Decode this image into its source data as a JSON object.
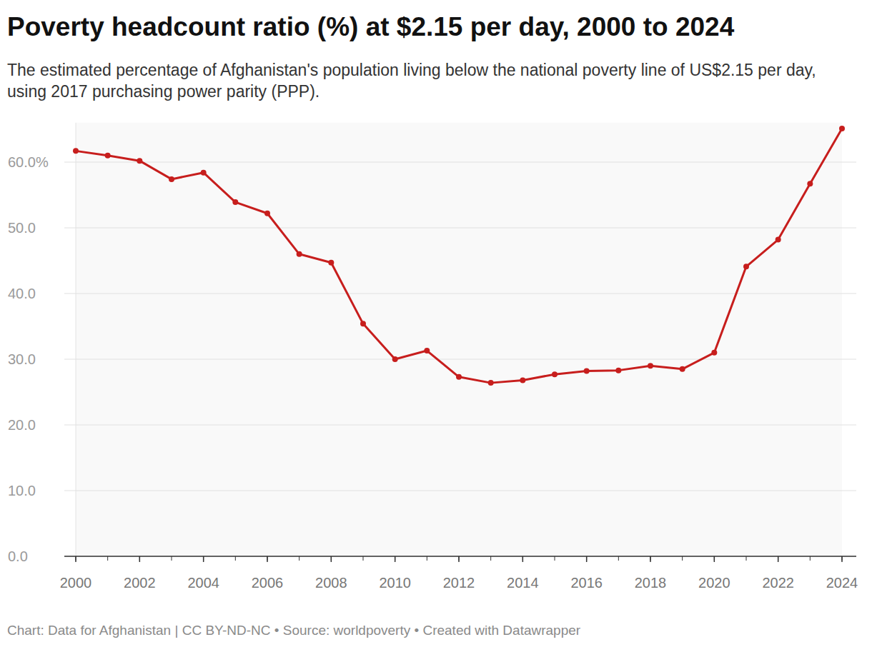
{
  "chart_data": {
    "type": "line",
    "title": "Poverty headcount ratio (%) at $2.15 per day, 2000 to 2024",
    "subtitle": "The estimated percentage of Afghanistan's population living below the national poverty line of US$2.15 per day, using 2017 purchasing power parity (PPP).",
    "source": "Chart: Data for Afghanistan | CC BY-ND-NC • Source: worldpoverty • Created with Datawrapper",
    "x": [
      2000,
      2001,
      2002,
      2003,
      2004,
      2005,
      2006,
      2007,
      2008,
      2009,
      2010,
      2011,
      2012,
      2013,
      2014,
      2015,
      2016,
      2017,
      2018,
      2019,
      2020,
      2021,
      2022,
      2023,
      2024
    ],
    "values": [
      61.7,
      61.0,
      60.2,
      57.4,
      58.4,
      53.9,
      52.2,
      46.0,
      44.7,
      35.4,
      30.0,
      31.3,
      27.3,
      26.4,
      26.8,
      27.7,
      28.2,
      28.3,
      29.0,
      28.5,
      31.0,
      44.1,
      48.2,
      56.7,
      65.1
    ],
    "color": "#c71e1d",
    "marker": "circle",
    "xlim": [
      2000,
      2024
    ],
    "xticks": [
      2000,
      2002,
      2004,
      2006,
      2008,
      2010,
      2012,
      2014,
      2016,
      2018,
      2020,
      2022,
      2024
    ],
    "ylim": [
      0,
      66
    ],
    "yticks": [
      {
        "value": 0,
        "label": "0.0"
      },
      {
        "value": 10,
        "label": "10.0"
      },
      {
        "value": 20,
        "label": "20.0"
      },
      {
        "value": 30,
        "label": "30.0"
      },
      {
        "value": 40,
        "label": "40.0"
      },
      {
        "value": 50,
        "label": "50.0"
      },
      {
        "value": 60,
        "label": "60.0%"
      }
    ],
    "grid": true
  }
}
